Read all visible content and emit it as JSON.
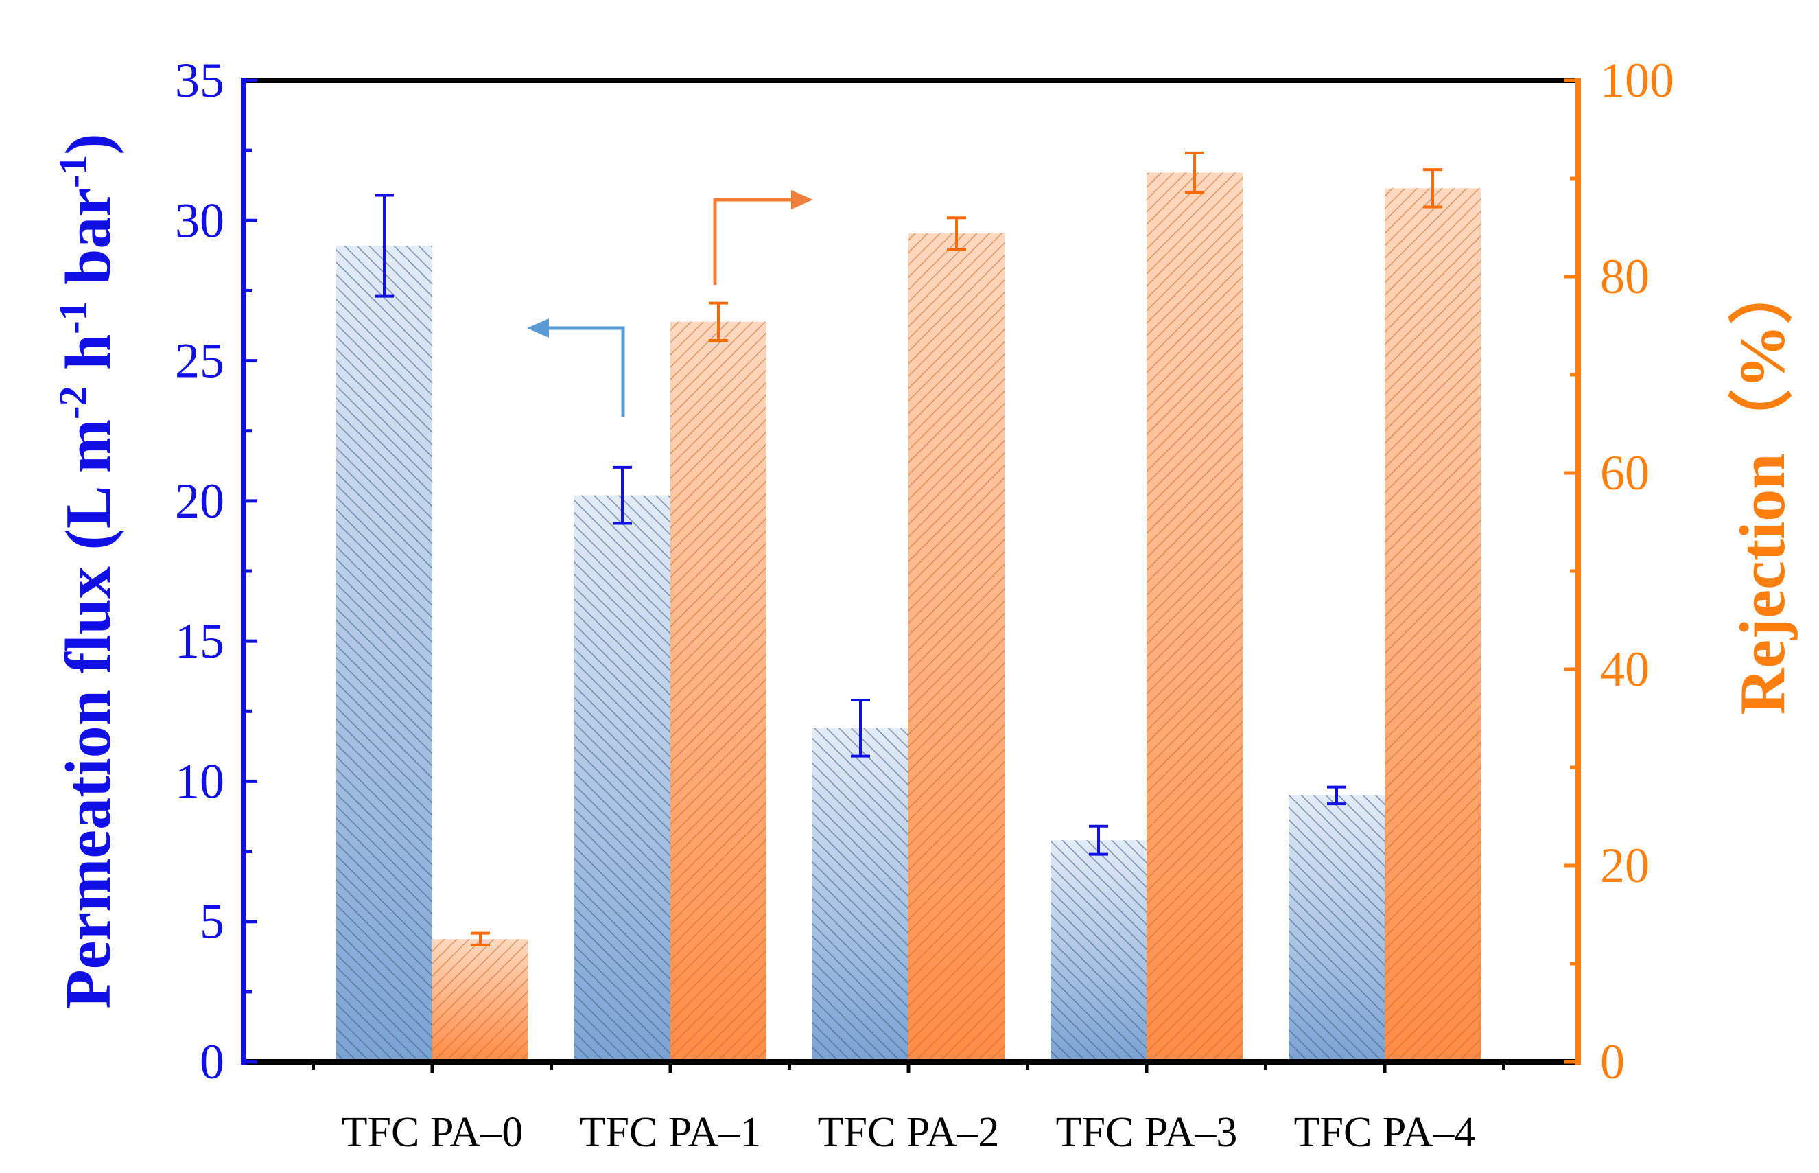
{
  "chart_data": {
    "type": "bar",
    "categories": [
      "TFC PA–0",
      "TFC PA–1",
      "TFC PA–2",
      "TFC PA–3",
      "TFC PA–4"
    ],
    "series": [
      {
        "name": "Permeation flux",
        "axis": "left",
        "color": "#7ba3d3",
        "values": [
          29.1,
          20.2,
          11.9,
          7.9,
          9.5
        ],
        "errors": [
          1.8,
          1.0,
          1.0,
          0.5,
          0.3
        ]
      },
      {
        "name": "Rejection",
        "axis": "right",
        "color": "#ff8c45",
        "values": [
          12.5,
          75.4,
          84.4,
          90.6,
          89.0
        ],
        "errors": [
          0.6,
          1.9,
          1.6,
          2.0,
          1.9
        ]
      }
    ],
    "y_left": {
      "label_main": "Permeation flux (L m",
      "sup1": "-2",
      "mid1": " h",
      "sup2": "-1",
      "mid2": " bar",
      "sup3": "-1",
      "label_end": ")",
      "min": 0,
      "max": 35,
      "step": 5,
      "color": "#1010e6"
    },
    "y_right": {
      "label": "Rejection（%）",
      "min": 0,
      "max": 100,
      "step": 20,
      "color": "#ff7f0e"
    },
    "annotations": [
      {
        "type": "arrow",
        "direction": "left",
        "points_to": "left-axis",
        "color": "#5b9bd5"
      },
      {
        "type": "arrow",
        "direction": "right",
        "points_to": "right-axis",
        "color": "#f07f3c"
      }
    ],
    "grid": false
  }
}
